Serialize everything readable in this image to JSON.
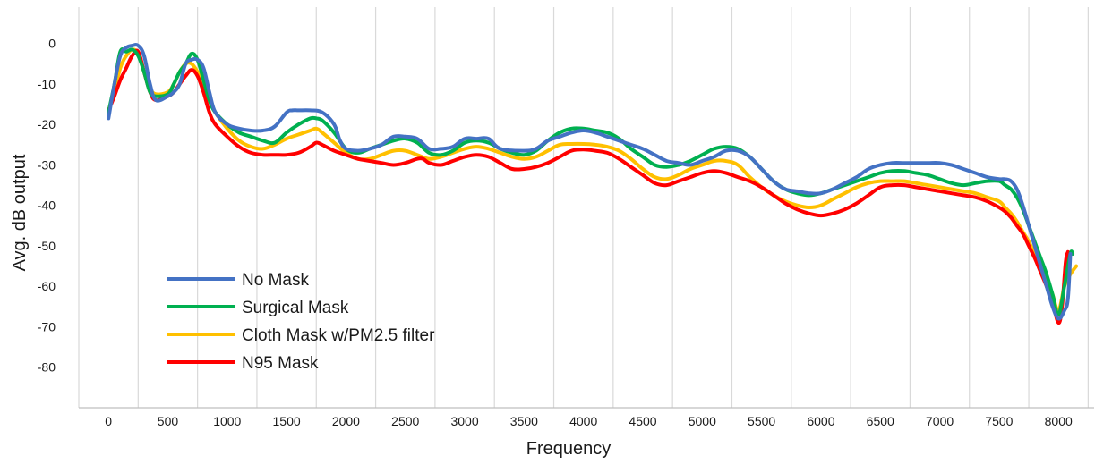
{
  "chart_data": {
    "type": "line",
    "title": "",
    "xlabel": "Frequency",
    "ylabel": "Avg. dB output",
    "xlim": [
      -250,
      8300
    ],
    "ylim": [
      -90,
      9
    ],
    "x_ticks": [
      0,
      500,
      1000,
      1500,
      2000,
      2500,
      3000,
      3500,
      4000,
      4500,
      5000,
      5500,
      6000,
      6500,
      7000,
      7500,
      8000
    ],
    "x_tick_labels": [
      "0",
      "500",
      "1000",
      "1500",
      "2000",
      "2500",
      "3000",
      "3500",
      "4000",
      "4500",
      "5000",
      "5500",
      "6000",
      "6500",
      "7000",
      "7500",
      "8000"
    ],
    "y_ticks": [
      0,
      -10,
      -20,
      -30,
      -40,
      -50,
      -60,
      -70,
      -80
    ],
    "y_tick_labels": [
      "0",
      "-10",
      "-20",
      "-30",
      "-40",
      "-50",
      "-60",
      "-70",
      "-80"
    ],
    "grid": "vertical",
    "legend_position": "bottom-left",
    "series": [
      {
        "name": "No Mask",
        "color": "#4472C4",
        "x": [
          0,
          50,
          100,
          150,
          200,
          250,
          300,
          350,
          400,
          500,
          550,
          600,
          650,
          700,
          750,
          800,
          850,
          900,
          1000,
          1100,
          1200,
          1300,
          1400,
          1500,
          1550,
          1600,
          1700,
          1800,
          1900,
          1950,
          2000,
          2100,
          2200,
          2300,
          2400,
          2500,
          2600,
          2700,
          2800,
          2900,
          3000,
          3100,
          3200,
          3300,
          3500,
          3600,
          3700,
          3800,
          3900,
          4000,
          4100,
          4200,
          4300,
          4400,
          4500,
          4600,
          4700,
          4800,
          4900,
          5000,
          5100,
          5200,
          5300,
          5400,
          5500,
          5600,
          5700,
          5800,
          5900,
          6000,
          6100,
          6200,
          6300,
          6400,
          6500,
          6600,
          6700,
          6800,
          6900,
          7000,
          7100,
          7200,
          7300,
          7400,
          7500,
          7550,
          7600,
          7650,
          7700,
          7750,
          7800,
          7850,
          7900,
          7950,
          8000,
          8050,
          8080,
          8100
        ],
        "y": [
          -18.5,
          -10,
          -3,
          -1,
          -0.5,
          -0.5,
          -3,
          -10,
          -14,
          -13,
          -12,
          -10,
          -5,
          -4,
          -4,
          -6,
          -12,
          -17,
          -20,
          -21,
          -21.5,
          -21.5,
          -20.5,
          -17,
          -16.5,
          -16.5,
          -16.5,
          -17,
          -20,
          -24,
          -26,
          -26.5,
          -26,
          -25,
          -23,
          -23,
          -23.5,
          -26,
          -26,
          -25.5,
          -23.5,
          -23.5,
          -23.5,
          -26,
          -26.5,
          -26,
          -24,
          -23,
          -22,
          -21.5,
          -22,
          -23,
          -24,
          -25,
          -26,
          -27.5,
          -29,
          -29.5,
          -30,
          -29,
          -28,
          -26.5,
          -26.5,
          -28,
          -31,
          -34,
          -36,
          -36.5,
          -37,
          -37,
          -36,
          -34.5,
          -33,
          -31,
          -30,
          -29.5,
          -29.5,
          -29.5,
          -29.5,
          -29.5,
          -30,
          -31,
          -32,
          -33,
          -33.5,
          -33.5,
          -34,
          -36,
          -40,
          -45,
          -50,
          -55,
          -60,
          -65,
          -68,
          -66,
          -63,
          -52
        ]
      },
      {
        "name": "Surgical Mask",
        "color": "#00B050",
        "x": [
          0,
          50,
          100,
          150,
          200,
          250,
          300,
          350,
          400,
          500,
          550,
          600,
          650,
          700,
          750,
          800,
          850,
          900,
          1000,
          1100,
          1200,
          1300,
          1400,
          1500,
          1600,
          1700,
          1750,
          1800,
          1900,
          2000,
          2100,
          2200,
          2300,
          2400,
          2500,
          2600,
          2700,
          2800,
          2900,
          3000,
          3100,
          3200,
          3300,
          3400,
          3500,
          3600,
          3700,
          3800,
          3900,
          4000,
          4100,
          4200,
          4300,
          4400,
          4500,
          4600,
          4700,
          4800,
          4900,
          5000,
          5100,
          5200,
          5300,
          5400,
          5500,
          5600,
          5700,
          5800,
          5900,
          6000,
          6100,
          6200,
          6300,
          6400,
          6500,
          6600,
          6700,
          6800,
          6900,
          7000,
          7100,
          7200,
          7300,
          7400,
          7500,
          7550,
          7600,
          7650,
          7700,
          7750,
          7800,
          7850,
          7900,
          7950,
          8000,
          8050,
          8100,
          8120
        ],
        "y": [
          -17,
          -10,
          -2,
          -2,
          -1.5,
          -3,
          -7,
          -12,
          -13,
          -12.5,
          -10,
          -7,
          -5,
          -2.5,
          -4,
          -9,
          -14,
          -17,
          -20,
          -22,
          -23,
          -24,
          -24.5,
          -22,
          -20,
          -18.5,
          -18.5,
          -19,
          -22,
          -26,
          -27,
          -26,
          -25,
          -24,
          -23.5,
          -24.5,
          -27,
          -27.5,
          -26.5,
          -24.5,
          -24,
          -24.5,
          -26,
          -27,
          -27.5,
          -26.5,
          -24,
          -22,
          -21,
          -21,
          -21.5,
          -22,
          -23.5,
          -26,
          -28,
          -30,
          -30.5,
          -30,
          -29,
          -27.5,
          -26,
          -25.5,
          -26,
          -28,
          -31,
          -34,
          -36,
          -37,
          -37.5,
          -37,
          -36,
          -35,
          -34,
          -33,
          -32,
          -31.5,
          -31.5,
          -32,
          -32.5,
          -33.5,
          -34.5,
          -35,
          -34.5,
          -34,
          -34,
          -35,
          -36,
          -38,
          -41,
          -45,
          -49,
          -53,
          -57,
          -62,
          -67,
          -60,
          -52,
          -52
        ]
      },
      {
        "name": "Cloth Mask w/PM2.5 filter",
        "color": "#FFC000",
        "x": [
          0,
          50,
          100,
          150,
          200,
          250,
          300,
          350,
          400,
          500,
          550,
          600,
          650,
          700,
          750,
          800,
          850,
          900,
          1000,
          1100,
          1200,
          1300,
          1400,
          1500,
          1600,
          1700,
          1750,
          1800,
          1900,
          2000,
          2100,
          2200,
          2300,
          2400,
          2500,
          2600,
          2700,
          2800,
          2900,
          3000,
          3100,
          3200,
          3300,
          3400,
          3500,
          3600,
          3700,
          3800,
          3900,
          4000,
          4100,
          4200,
          4300,
          4400,
          4500,
          4600,
          4700,
          4800,
          4900,
          5000,
          5100,
          5200,
          5300,
          5400,
          5500,
          5600,
          5700,
          5800,
          5900,
          6000,
          6100,
          6200,
          6300,
          6400,
          6500,
          6600,
          6700,
          6800,
          6900,
          7000,
          7100,
          7200,
          7300,
          7400,
          7500,
          7550,
          7600,
          7650,
          7700,
          7750,
          7800,
          7850,
          7900,
          7950,
          8000,
          8050,
          8100,
          8150
        ],
        "y": [
          -16.5,
          -12,
          -6,
          -3,
          -1.5,
          -2.5,
          -7,
          -11,
          -12.5,
          -12,
          -10,
          -7,
          -5,
          -5,
          -7,
          -10,
          -14,
          -17,
          -21,
          -24,
          -25.5,
          -26,
          -25,
          -23.5,
          -22.5,
          -21.5,
          -21,
          -22,
          -24.5,
          -27,
          -28.5,
          -28.5,
          -27.5,
          -26.5,
          -26.5,
          -27.5,
          -28.5,
          -28,
          -27,
          -26,
          -25.5,
          -26,
          -27,
          -28,
          -28.5,
          -28,
          -26.5,
          -25,
          -24.8,
          -24.8,
          -25,
          -25.5,
          -26.5,
          -28.5,
          -31,
          -33,
          -33.5,
          -32.5,
          -31,
          -30,
          -29,
          -29,
          -30,
          -33,
          -35.5,
          -37.5,
          -39,
          -40,
          -40.5,
          -40,
          -38.5,
          -37,
          -35.5,
          -34.5,
          -34,
          -34,
          -34,
          -34.5,
          -35,
          -35.5,
          -36,
          -36.5,
          -37,
          -38,
          -39,
          -40.5,
          -42,
          -44,
          -46.5,
          -49,
          -52,
          -55,
          -58,
          -62,
          -66,
          -60,
          -57,
          -55
        ]
      },
      {
        "name": "N95 Mask",
        "color": "#FF0000",
        "x": [
          0,
          50,
          100,
          150,
          200,
          250,
          300,
          350,
          400,
          500,
          550,
          600,
          650,
          700,
          750,
          800,
          850,
          900,
          1000,
          1100,
          1200,
          1300,
          1400,
          1500,
          1600,
          1700,
          1750,
          1800,
          1900,
          2000,
          2100,
          2200,
          2300,
          2400,
          2500,
          2600,
          2650,
          2700,
          2800,
          2900,
          3000,
          3100,
          3200,
          3300,
          3400,
          3500,
          3600,
          3700,
          3800,
          3900,
          4000,
          4100,
          4200,
          4300,
          4400,
          4500,
          4600,
          4700,
          4800,
          4900,
          5000,
          5100,
          5200,
          5300,
          5400,
          5500,
          5600,
          5700,
          5800,
          5900,
          6000,
          6100,
          6200,
          6300,
          6400,
          6500,
          6600,
          6700,
          6800,
          6900,
          7000,
          7100,
          7200,
          7300,
          7400,
          7500,
          7550,
          7600,
          7650,
          7700,
          7750,
          7800,
          7850,
          7900,
          7950,
          8000,
          8030,
          8060,
          8080
        ],
        "y": [
          -16.5,
          -13,
          -9,
          -6,
          -3,
          -2,
          -7,
          -12,
          -14,
          -13,
          -12,
          -10,
          -8,
          -6.5,
          -8,
          -12,
          -17,
          -20,
          -23,
          -25.5,
          -27,
          -27.5,
          -27.5,
          -27.5,
          -27,
          -25.5,
          -24.5,
          -25,
          -26.5,
          -27.5,
          -28.5,
          -29,
          -29.5,
          -30,
          -29.5,
          -28.5,
          -28.5,
          -29.5,
          -30,
          -29,
          -28,
          -27.5,
          -28,
          -29.5,
          -31,
          -31,
          -30.5,
          -29.5,
          -28,
          -26.5,
          -26.2,
          -26.5,
          -27,
          -28.5,
          -30.5,
          -32.5,
          -34.5,
          -35,
          -34,
          -33,
          -32,
          -31.5,
          -32,
          -33,
          -34,
          -35.5,
          -37.5,
          -39.5,
          -41,
          -42,
          -42.5,
          -42,
          -41,
          -39.5,
          -37.5,
          -35.5,
          -35,
          -35,
          -35.5,
          -36,
          -36.5,
          -37,
          -37.5,
          -38,
          -39,
          -40.5,
          -41.5,
          -43,
          -45,
          -47,
          -50,
          -53,
          -56.5,
          -60,
          -64,
          -69,
          -65,
          -54,
          -51.5
        ]
      }
    ]
  }
}
